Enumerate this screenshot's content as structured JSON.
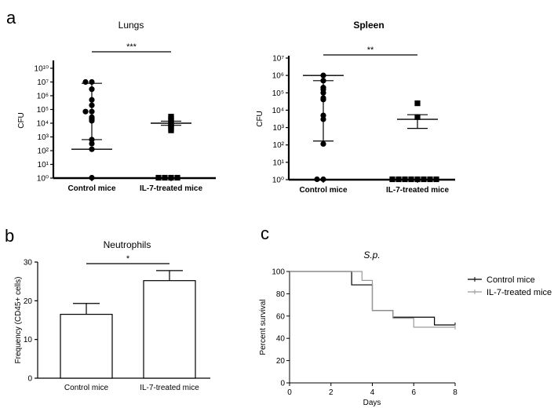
{
  "chart_data": [
    {
      "panel": "a",
      "type": "scatter",
      "title": "Lungs",
      "ylabel": "CFU",
      "yscale": "log",
      "ylim": [
        1,
        10000000000
      ],
      "yticks": [
        "10⁰",
        "10¹",
        "10²",
        "10³",
        "10⁴",
        "10⁵",
        "10⁶",
        "10⁷",
        "10¹⁰"
      ],
      "categories": [
        "Control mice",
        "IL-7-treated mice"
      ],
      "significance": "***",
      "series": [
        {
          "marker": "circle",
          "values": [
            1,
            15000,
            20000,
            200000,
            500000,
            3000000,
            10000000,
            10000000,
            20000000,
            30000000,
            40000000,
            200000000,
            300000000,
            300000000
          ],
          "mean": 20000000,
          "sem_upper": 40000000,
          "sem_lower": 8000000
        },
        {
          "marker": "square",
          "values": [
            1,
            1,
            1,
            1,
            3000,
            4000,
            5000,
            6000,
            8000,
            10000,
            15000,
            20000,
            25000,
            30000
          ],
          "mean": 10000,
          "sem_upper": 14000,
          "sem_lower": 7000
        }
      ]
    },
    {
      "panel": "a",
      "type": "scatter",
      "title": "Spleen",
      "ylabel": "CFU",
      "yscale": "log",
      "ylim": [
        1,
        10000000
      ],
      "yticks": [
        "10⁰",
        "10¹",
        "10²",
        "10³",
        "10⁴",
        "10⁵",
        "10⁶",
        "10⁷"
      ],
      "categories": [
        "Control mice",
        "IL-7-treated mice"
      ],
      "significance": "**",
      "series": [
        {
          "marker": "circle",
          "values": [
            1,
            1,
            3000,
            5000,
            50000,
            100000,
            200000,
            500000,
            1000000,
            1500000,
            4000000,
            5000000
          ],
          "mean": 1000000,
          "sem_upper": 1600000,
          "sem_lower": 500000
        },
        {
          "marker": "square",
          "values": [
            1,
            1,
            1,
            1,
            1,
            1,
            1,
            1,
            4000,
            25000
          ],
          "mean": 3000,
          "sem_upper": 5500,
          "sem_lower": 900
        }
      ]
    },
    {
      "panel": "b",
      "type": "bar",
      "title": "Neutrophils",
      "ylabel": "Frequency (CD45+ cells)",
      "ylim": [
        0,
        30
      ],
      "yticks": [
        0,
        10,
        20,
        30
      ],
      "categories": [
        "Control mice",
        "IL-7-treated mice"
      ],
      "values": [
        16.5,
        25.2
      ],
      "errors": [
        2.8,
        2.6
      ],
      "significance": "*"
    },
    {
      "panel": "c",
      "type": "line",
      "title": "S.p.",
      "xlabel": "Days",
      "ylabel": "Percent survival",
      "xlim": [
        0,
        8
      ],
      "ylim": [
        0,
        100
      ],
      "xticks": [
        0,
        2,
        4,
        6,
        8
      ],
      "yticks": [
        0,
        20,
        40,
        60,
        80,
        100
      ],
      "legend_position": "right",
      "series": [
        {
          "name": "Control mice",
          "color": "#000000",
          "x": [
            0,
            3,
            4,
            5,
            7,
            8
          ],
          "y": [
            100,
            88,
            65,
            59,
            52,
            52
          ]
        },
        {
          "name": "IL-7-treated mice",
          "color": "#9a9a9a",
          "x": [
            0,
            3.5,
            4,
            5,
            6,
            8
          ],
          "y": [
            100,
            92,
            65,
            58,
            50,
            50
          ]
        }
      ]
    }
  ]
}
